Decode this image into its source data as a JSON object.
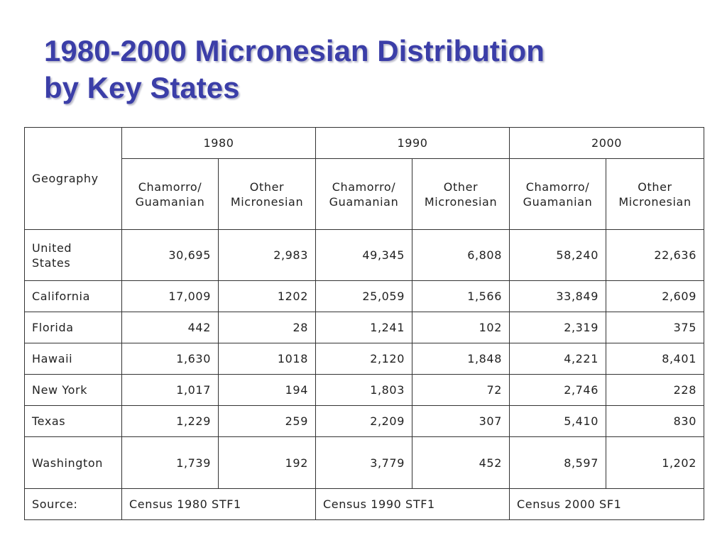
{
  "title": {
    "line1": "1980-2000 Micronesian Distribution",
    "line2": "by Key States"
  },
  "table": {
    "geo_header": "Geography",
    "years": [
      "1980",
      "1990",
      "2000"
    ],
    "sub_headers": [
      [
        "Chamorro/",
        "Guamanian"
      ],
      [
        "Other",
        "Micronesian"
      ],
      [
        "Chamorro/",
        "Guamanian"
      ],
      [
        "Other",
        "Micronesian"
      ],
      [
        "Chamorro/",
        "Guamanian"
      ],
      [
        "Other",
        "Micronesian"
      ]
    ],
    "rows": [
      {
        "geo": [
          "United",
          "States"
        ],
        "values": [
          "30,695",
          "2,983",
          "49,345",
          "6,808",
          "58,240",
          "22,636"
        ]
      },
      {
        "geo": [
          "California"
        ],
        "values": [
          "17,009",
          "1202",
          "25,059",
          "1,566",
          "33,849",
          "2,609"
        ]
      },
      {
        "geo": [
          "Florida"
        ],
        "values": [
          "442",
          "28",
          "1,241",
          "102",
          "2,319",
          "375"
        ]
      },
      {
        "geo": [
          "Hawaii"
        ],
        "values": [
          "1,630",
          "1018",
          "2,120",
          "1,848",
          "4,221",
          "8,401"
        ]
      },
      {
        "geo": [
          "New York"
        ],
        "values": [
          "1,017",
          "194",
          "1,803",
          "72",
          "2,746",
          "228"
        ]
      },
      {
        "geo": [
          "Texas"
        ],
        "values": [
          "1,229",
          "259",
          "2,209",
          "307",
          "5,410",
          "830"
        ]
      },
      {
        "geo": [
          "Washington"
        ],
        "values": [
          "1,739",
          "192",
          "3,779",
          "452",
          "8,597",
          "1,202"
        ]
      }
    ],
    "source_label": "Source:",
    "sources": [
      "Census 1980 STF1",
      "Census 1990 STF1",
      "Census 2000 SF1"
    ]
  },
  "colors": {
    "title": "#3b3ea8",
    "border": "#333333",
    "text": "#222222"
  }
}
